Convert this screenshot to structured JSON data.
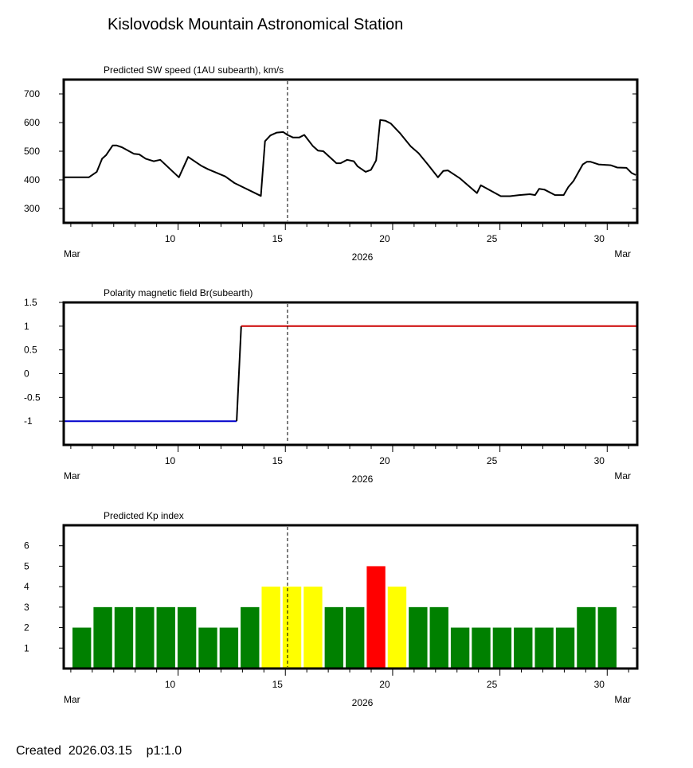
{
  "title": "Kislovodsk Mountain Astronomical Station",
  "footer": "Created  2026.03.15    p1:1.0",
  "colors": {
    "green": "#008000",
    "yellow": "#ffff00",
    "red": "#ff0000",
    "blue": "#0000cc",
    "darkred": "#cc0000",
    "line": "#000000"
  },
  "chart_data": [
    {
      "type": "line",
      "title": "Predicted SW speed (1AU subearth), km/s",
      "xlabel": "2026",
      "x_month_left": "Mar",
      "x_month_right": "Mar",
      "xlim": [
        4.67,
        31.4
      ],
      "xticks": [
        10,
        15,
        20,
        25,
        30
      ],
      "ylim": [
        250,
        750
      ],
      "yticks": [
        300,
        400,
        500,
        600,
        700
      ],
      "now_marker": 15.1,
      "series": [
        {
          "name": "SW speed",
          "color": "#000000",
          "x": [
            4.67,
            5.84,
            6.21,
            6.46,
            6.64,
            6.95,
            7.14,
            7.38,
            7.94,
            8.19,
            8.49,
            8.86,
            9.17,
            10.04,
            10.47,
            11.09,
            11.4,
            12.2,
            12.63,
            13.86,
            14.05,
            14.3,
            14.6,
            14.9,
            15.1,
            15.35,
            15.65,
            15.88,
            16.27,
            16.52,
            16.77,
            17.38,
            17.57,
            17.88,
            18.19,
            18.37,
            18.74,
            18.99,
            19.23,
            19.42,
            19.67,
            19.91,
            20.34,
            20.84,
            21.21,
            21.64,
            22.11,
            22.36,
            22.57,
            23.12,
            23.93,
            24.11,
            25.04,
            25.47,
            25.9,
            26.4,
            26.64,
            26.83,
            27.07,
            27.57,
            27.97,
            28.19,
            28.43,
            28.86,
            29.05,
            29.23,
            29.6,
            30.16,
            30.47,
            30.9,
            31.14,
            31.33
          ],
          "y": [
            409,
            409,
            428,
            474,
            486,
            520,
            520,
            514,
            491,
            489,
            474,
            465,
            470,
            409,
            480,
            449,
            437,
            412,
            389,
            344,
            535,
            555,
            565,
            567,
            557,
            548,
            548,
            557,
            519,
            502,
            500,
            458,
            458,
            470,
            465,
            447,
            428,
            435,
            468,
            609,
            606,
            597,
            563,
            517,
            493,
            454,
            409,
            431,
            433,
            406,
            354,
            381,
            343,
            343,
            347,
            350,
            347,
            369,
            366,
            347,
            347,
            375,
            396,
            454,
            463,
            463,
            454,
            451,
            443,
            442,
            424,
            417
          ]
        }
      ]
    },
    {
      "type": "line",
      "title": "Polarity magnetic field  Br(subearth)",
      "xlabel": "2026",
      "x_month_left": "Mar",
      "x_month_right": "Mar",
      "xlim": [
        4.67,
        31.4
      ],
      "xticks": [
        10,
        15,
        20,
        25,
        30
      ],
      "ylim": [
        -1.5,
        1.5
      ],
      "yticks": [
        1.5,
        1,
        0.5,
        0,
        -0.5,
        -1
      ],
      "ytick_labels": [
        "1.5",
        "1",
        "0.5",
        "0",
        "-0.5",
        "-1"
      ],
      "now_marker": 15.1,
      "series": [
        {
          "name": "negative",
          "color": "#0000cc",
          "x": [
            4.67,
            12.73
          ],
          "y": [
            -1,
            -1
          ]
        },
        {
          "name": "transition",
          "color": "#000000",
          "x": [
            12.73,
            12.94
          ],
          "y": [
            -1,
            1
          ]
        },
        {
          "name": "positive",
          "color": "#cc0000",
          "x": [
            12.94,
            31.4
          ],
          "y": [
            1,
            1
          ]
        }
      ]
    },
    {
      "type": "bar",
      "title": "Predicted Kp index",
      "xlabel": "2026",
      "x_month_left": "Mar",
      "x_month_right": "Mar",
      "xlim": [
        4.67,
        31.4
      ],
      "xticks": [
        10,
        15,
        20,
        25,
        30
      ],
      "ylim": [
        0,
        7
      ],
      "yticks": [
        1,
        2,
        3,
        4,
        5,
        6
      ],
      "now_marker": 15.1,
      "categories": [
        5,
        6,
        7,
        8,
        9,
        10,
        11,
        12,
        13,
        14,
        15,
        16,
        17,
        18,
        19,
        20,
        21,
        22,
        23,
        24,
        25,
        26,
        27,
        28,
        29,
        30
      ],
      "values": [
        2,
        3,
        3,
        3,
        3,
        3,
        2,
        2,
        3,
        4,
        4,
        4,
        3,
        3,
        5,
        4,
        3,
        3,
        2,
        2,
        2,
        2,
        2,
        2,
        3,
        3
      ],
      "color_scale": {
        "le3": "#008000",
        "eq4": "#ffff00",
        "ge5": "#ff0000"
      }
    }
  ]
}
